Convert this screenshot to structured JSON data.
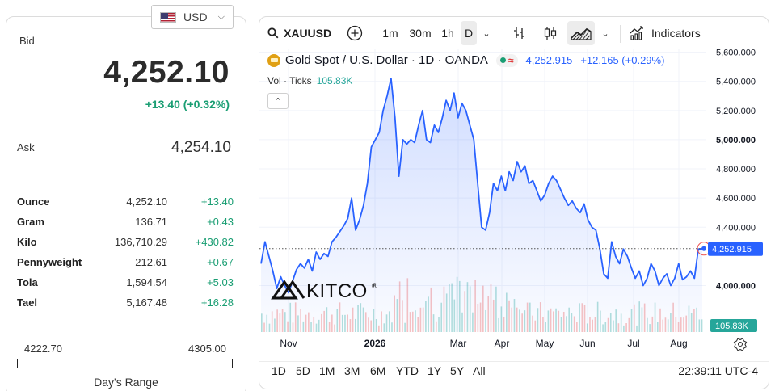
{
  "currency": {
    "code": "USD",
    "flag_icon": "us-flag-icon"
  },
  "quote": {
    "bid_label": "Bid",
    "bid": "4,252.10",
    "bid_change": "+13.40 (+0.32%)",
    "ask_label": "Ask",
    "ask": "4,254.10"
  },
  "units": [
    {
      "name": "Ounce",
      "price": "4,252.10",
      "change": "+13.40"
    },
    {
      "name": "Gram",
      "price": "136.71",
      "change": "+0.43"
    },
    {
      "name": "Kilo",
      "price": "136,710.29",
      "change": "+430.82"
    },
    {
      "name": "Pennyweight",
      "price": "212.61",
      "change": "+0.67"
    },
    {
      "name": "Tola",
      "price": "1,594.54",
      "change": "+5.03"
    },
    {
      "name": "Tael",
      "price": "5,167.48",
      "change": "+16.28"
    }
  ],
  "range": {
    "low": "4222.70",
    "high": "4305.00",
    "label": "Day's Range"
  },
  "toolbar": {
    "symbol": "XAUUSD",
    "intervals": [
      "1m",
      "30m",
      "1h",
      "D"
    ],
    "active_interval": "D",
    "indicators_label": "Indicators"
  },
  "legend": {
    "title": "Gold Spot / U.S. Dollar · 1D · OANDA",
    "price": "4,252.915",
    "change": "+12.165 (+0.29%)",
    "vol_label": "Vol · Ticks",
    "vol_value": "105.83K"
  },
  "watermark": "KITCO",
  "ranges": [
    "1D",
    "5D",
    "1M",
    "3M",
    "6M",
    "YTD",
    "1Y",
    "5Y",
    "All"
  ],
  "clock": "22:39:11 UTC-4",
  "colors": {
    "line": "#2962ff",
    "positive": "#1a9e73",
    "price_label": "#2962ff",
    "vol_label": "#26a69a"
  },
  "chart_data": {
    "type": "area",
    "title": "Gold Spot / U.S. Dollar · 1D · OANDA",
    "xlabel": "",
    "ylabel": "",
    "x_ticks": [
      "Nov",
      "2026",
      "Mar",
      "Apr",
      "May",
      "Jun",
      "Jul",
      "Aug"
    ],
    "y_ticks": [
      "5,600.000",
      "5,400.000",
      "5,200.000",
      "5,000.000",
      "4,800.000",
      "4,600.000",
      "4,400.000",
      "4,000.000"
    ],
    "ylim": [
      3770,
      5620
    ],
    "last_price_label": "4,252.915",
    "volume_label": "105.83K",
    "series": [
      {
        "values": [
          4150,
          4300,
          4200,
          4100,
          3980,
          4060,
          4000,
          3950,
          4030,
          4110,
          4150,
          4120,
          4180,
          4100,
          4230,
          4180,
          4220,
          4200,
          4300,
          4330,
          4370,
          4410,
          4460,
          4600,
          4380,
          4450,
          4550,
          4700,
          4950,
          5000,
          5050,
          5200,
          5300,
          5420,
          5150,
          4750,
          5000,
          4970,
          5000,
          4980,
          5100,
          5200,
          5000,
          4980,
          5100,
          5050,
          5150,
          5270,
          5200,
          5320,
          5150,
          5250,
          5200,
          5100,
          5000,
          4700,
          4400,
          4380,
          4500,
          4700,
          4650,
          4750,
          4650,
          4780,
          4720,
          4850,
          4780,
          4820,
          4700,
          4720,
          4650,
          4580,
          4620,
          4700,
          4750,
          4720,
          4660,
          4600,
          4550,
          4580,
          4530,
          4500,
          4560,
          4450,
          4400,
          4380,
          4250,
          4080,
          4050,
          4300,
          4200,
          4150,
          4250,
          4200,
          4120,
          4050,
          4100,
          4000,
          4050,
          4150,
          4100,
          4000,
          4050,
          4080,
          4000,
          4050,
          4150,
          4040,
          4060,
          4100,
          4050,
          4250,
          4253
        ]
      }
    ]
  }
}
